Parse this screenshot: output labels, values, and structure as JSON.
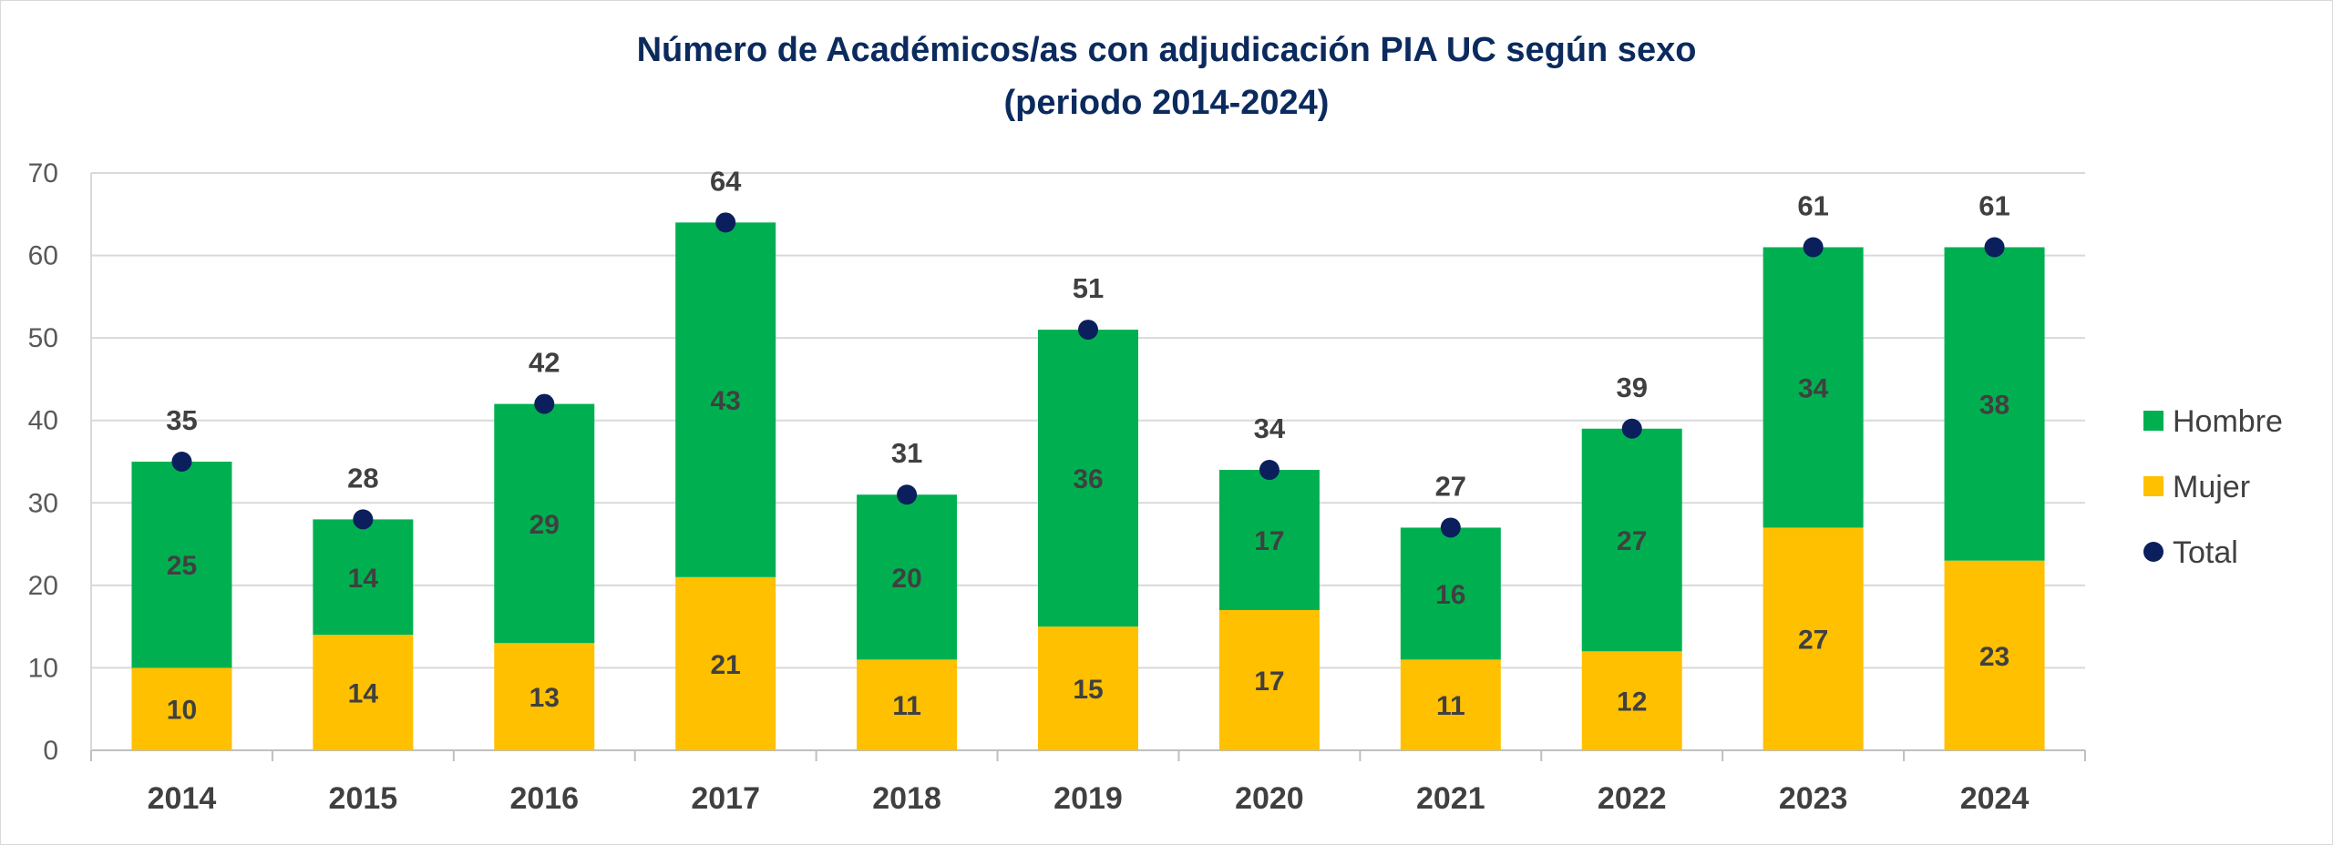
{
  "chart_data": {
    "type": "bar",
    "stacked": true,
    "title": "Número de Académicos/as con adjudicación PIA UC según sexo",
    "subtitle": "(periodo 2014-2024)",
    "categories": [
      "2014",
      "2015",
      "2016",
      "2017",
      "2018",
      "2019",
      "2020",
      "2021",
      "2022",
      "2023",
      "2024"
    ],
    "series": [
      {
        "name": "Mujer",
        "color": "#ffc000",
        "values": [
          10,
          14,
          13,
          21,
          11,
          15,
          17,
          11,
          12,
          27,
          23
        ]
      },
      {
        "name": "Hombre",
        "color": "#00b050",
        "values": [
          25,
          14,
          29,
          43,
          20,
          36,
          17,
          16,
          27,
          34,
          38
        ]
      },
      {
        "name": "Total",
        "color": "#0b1f5c",
        "marker": "dot",
        "values": [
          35,
          28,
          42,
          64,
          31,
          51,
          34,
          27,
          39,
          61,
          61
        ]
      }
    ],
    "legend_order": [
      "Hombre",
      "Mujer",
      "Total"
    ],
    "ylim": [
      0,
      70
    ],
    "yticks": [
      0,
      10,
      20,
      30,
      40,
      50,
      60,
      70
    ],
    "grid": true,
    "legend_position": "right"
  }
}
